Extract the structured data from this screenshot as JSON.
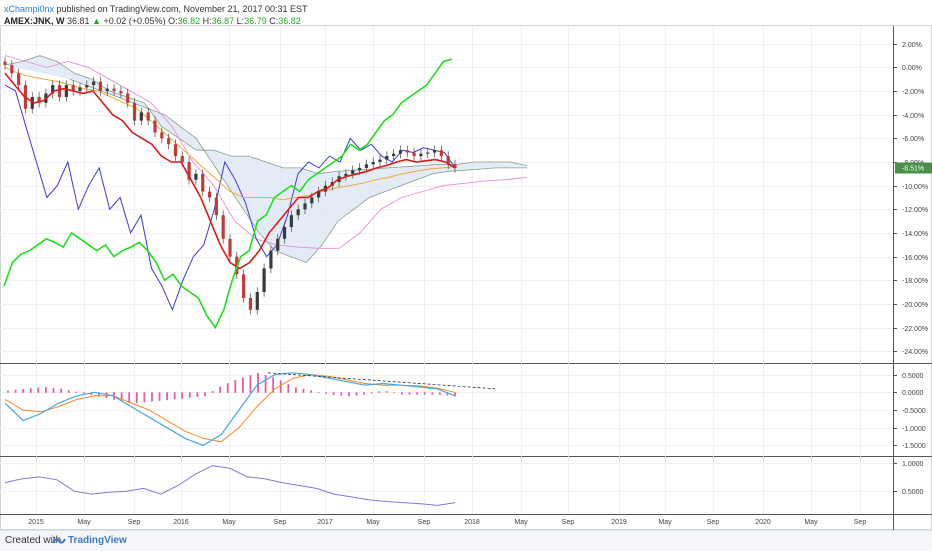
{
  "header": {
    "author": "xChampi0nx",
    "published": "published on TradingView.com, November 21, 2017 00:31 EST",
    "symbol": "AMEX:JNK, W",
    "last": "36.81",
    "change": "+0.02 (+0.05%)",
    "open_label": "O:",
    "open": "36.82",
    "high_label": "H:",
    "high": "36.87",
    "low_label": "L:",
    "low": "36.79",
    "close_label": "C:",
    "close": "36.82"
  },
  "footer": {
    "created": "Created with",
    "brand": "TradingView"
  },
  "colors": {
    "tenkan": "#e01919",
    "kijun": "#f4a63a",
    "chikou": "#22dd22",
    "blue": "#3c3ccf",
    "cloud": "#d7e4f2",
    "cloud_edge": "#8a9f88",
    "pink": "#e58fd6",
    "macd": "#46a9e0",
    "signal": "#f48a2a",
    "hist": "#e05ca8",
    "rsi": "#8577d6",
    "up": "#3a3a3a",
    "down": "#c23b3b",
    "price_tag": "#4a8f4a"
  },
  "chart_data": [
    {
      "type": "line",
      "panel": "main",
      "x_ticks": [
        "2015",
        "May",
        "Sep",
        "2016",
        "May",
        "Sep",
        "2017",
        "May",
        "Sep",
        "2018",
        "May",
        "Sep",
        "2019",
        "May",
        "Sep",
        "2020",
        "May",
        "Sep"
      ],
      "y_ticks": [
        "2.00%",
        "0.00%",
        "-2.00%",
        "-4.00%",
        "-6.00%",
        "-8.00%",
        "-10.00%",
        "-12.00%",
        "-14.00%",
        "-16.00%",
        "-18.00%",
        "-20.00%",
        "-22.00%",
        "-24.00%"
      ],
      "ylim": [
        -25,
        3.5
      ],
      "last_value_label": "-8.51%",
      "candles_close": [
        0.2,
        -0.5,
        -1.5,
        -3.5,
        -2.5,
        -3.0,
        -2.2,
        -1.5,
        -2.5,
        -1.5,
        -2.0,
        -1.7,
        -1.5,
        -1.2,
        -2.0,
        -1.8,
        -2.0,
        -2.2,
        -3.0,
        -4.5,
        -3.8,
        -4.5,
        -5.5,
        -6.0,
        -6.5,
        -7.5,
        -8.0,
        -9.5,
        -9.0,
        -10.5,
        -11.0,
        -12.5,
        -14.5,
        -16.0,
        -17.5,
        -19.5,
        -20.5,
        -19.0,
        -17.0,
        -15.5,
        -14.5,
        -13.5,
        -12.5,
        -12.0,
        -11.5,
        -11.0,
        -10.5,
        -10.0,
        -9.7,
        -9.2,
        -9.0,
        -8.7,
        -8.5,
        -8.2,
        -8.0,
        -7.8,
        -7.5,
        -7.3,
        -7.0,
        -7.2,
        -7.5,
        -7.3,
        -7.2,
        -7.0,
        -7.5,
        -8.2,
        -8.5
      ],
      "series": [
        {
          "name": "",
          "role": "chikou",
          "values": [
            -18.5,
            -16.5,
            -15.8,
            -15.5,
            -15.0,
            -14.5,
            -14.8,
            -15.2,
            -14.0,
            -14.5,
            -15.0,
            -15.5,
            -15.0,
            -16.0,
            -15.5,
            -15.2,
            -14.8,
            -15.5,
            -16.5,
            -18.0,
            -17.5,
            -18.5,
            -19.0,
            -19.5,
            -21.0,
            -22.0,
            -20.5,
            -18.0,
            -16.0,
            -15.5,
            -13.0,
            -12.5,
            -11.0,
            -10.5,
            -10.0,
            -10.5,
            -9.5,
            -9.0,
            -8.5,
            -8.0,
            -7.5,
            -6.5,
            -7.0,
            -6.5,
            -5.5,
            -4.5,
            -4.0,
            -3.0,
            -2.5,
            -2.0,
            -1.5,
            -0.5,
            0.5,
            0.7
          ]
        },
        {
          "name": "",
          "role": "tenkan",
          "values": [
            -0.5,
            -1.5,
            -2.5,
            -3.0,
            -2.8,
            -2.0,
            -1.8,
            -2.0,
            -2.2,
            -2.0,
            -3.0,
            -4.0,
            -4.5,
            -5.5,
            -6.0,
            -6.5,
            -7.5,
            -8.0,
            -8.0,
            -9.5,
            -11.0,
            -13.0,
            -15.0,
            -16.5,
            -17.0,
            -16.5,
            -15.5,
            -14.0,
            -13.0,
            -12.0,
            -11.0,
            -11.0,
            -10.5,
            -10.2,
            -9.5,
            -9.2,
            -9.0,
            -8.8,
            -8.5,
            -8.3,
            -8.0,
            -7.8,
            -8.0,
            -7.9,
            -7.8,
            -8.0,
            -8.5
          ]
        },
        {
          "name": "",
          "role": "kijun",
          "values": [
            0.0,
            -0.5,
            -0.8,
            -1.0,
            -1.2,
            -1.5,
            -1.8,
            -2.0,
            -2.5,
            -3.0,
            -3.5,
            -4.5,
            -5.5,
            -6.5,
            -7.5,
            -8.5,
            -9.5,
            -10.5,
            -11.0,
            -11.0,
            -11.0,
            -11.2,
            -11.0,
            -10.8,
            -10.5,
            -10.2,
            -10.0,
            -9.8,
            -9.5,
            -9.3,
            -9.0,
            -8.8,
            -8.6,
            -8.5,
            -8.4
          ]
        },
        {
          "name": "",
          "role": "blue",
          "values": [
            -1.5,
            -2.0,
            -5.0,
            -8.0,
            -11.0,
            -10.0,
            -8.0,
            -12.0,
            -10.0,
            -8.5,
            -12.0,
            -11.0,
            -14.0,
            -12.5,
            -17.0,
            -18.5,
            -20.5,
            -18.0,
            -16.0,
            -15.0,
            -12.0,
            -8.0,
            -9.5,
            -11.5,
            -14.5,
            -16.0,
            -15.0,
            -12.5,
            -9.0,
            -8.0,
            -8.5,
            -7.5,
            -8.0,
            -6.0,
            -7.0,
            -6.5,
            -7.5,
            -8.0,
            -7.0,
            -7.2,
            -6.8,
            -7.0,
            -7.2,
            -8.5
          ]
        },
        {
          "name": "",
          "role": "cloud_top",
          "values": [
            0.2,
            0.5,
            1.0,
            0.5,
            -0.5,
            -1.0,
            -2.0,
            -2.5,
            -3.0,
            -5.0,
            -6.0,
            -7.0,
            -7.0,
            -7.5,
            -7.5,
            -8.0,
            -8.5,
            -8.5,
            -9.0,
            -8.8,
            -8.7,
            -8.6,
            -8.5,
            -8.4,
            -8.3,
            -8.2,
            -8.2,
            -8.0,
            -8.0,
            -8.0,
            -8.3
          ]
        },
        {
          "name": "",
          "role": "cloud_bottom",
          "values": [
            -1.0,
            -1.5,
            -2.0,
            -2.5,
            -3.0,
            -3.5,
            -4.0,
            -5.0,
            -6.0,
            -8.0,
            -10.0,
            -12.0,
            -14.0,
            -15.5,
            -16.0,
            -16.5,
            -15.0,
            -13.0,
            -12.0,
            -11.0,
            -10.5,
            -10.0,
            -9.5,
            -9.0,
            -8.8,
            -8.7,
            -8.6,
            -8.5,
            -8.5,
            -8.5
          ]
        },
        {
          "name": "",
          "role": "pink",
          "values": [
            1.0,
            0.5,
            0.0,
            0.5,
            0.0,
            -1.0,
            -2.0,
            -3.0,
            -5.0,
            -8.0,
            -10.0,
            -13.0,
            -14.5,
            -15.0,
            -15.2,
            -15.3,
            -15.3,
            -14.0,
            -12.0,
            -11.0,
            -10.5,
            -10.0,
            -9.8,
            -9.6,
            -9.5,
            -9.3
          ]
        }
      ]
    },
    {
      "type": "line",
      "panel": "macd",
      "y_ticks": [
        "0.5000",
        "0.0000",
        "-0.5000",
        "-1.0000",
        "-1.5000"
      ],
      "ylim": [
        -1.8,
        0.8
      ],
      "series": [
        {
          "name": "",
          "role": "macd",
          "values": [
            -0.3,
            -0.8,
            -0.6,
            -0.3,
            -0.1,
            0.0,
            -0.1,
            -0.4,
            -0.7,
            -1.0,
            -1.3,
            -1.5,
            -1.2,
            -0.5,
            0.2,
            0.5,
            0.55,
            0.5,
            0.4,
            0.3,
            0.2,
            0.25,
            0.2,
            0.15,
            0.1,
            -0.1
          ]
        },
        {
          "name": "",
          "role": "signal",
          "values": [
            -0.2,
            -0.5,
            -0.55,
            -0.4,
            -0.2,
            -0.1,
            -0.1,
            -0.3,
            -0.5,
            -0.8,
            -1.1,
            -1.3,
            -1.4,
            -1.0,
            -0.4,
            0.1,
            0.4,
            0.5,
            0.45,
            0.35,
            0.25,
            0.2,
            0.2,
            0.18,
            0.12,
            0.0
          ]
        },
        {
          "name": "",
          "role": "histogram",
          "values": [
            0.05,
            0.1,
            0.15,
            0.1,
            0.0,
            -0.1,
            -0.2,
            -0.3,
            -0.25,
            -0.2,
            -0.15,
            -0.1,
            0.2,
            0.4,
            0.55,
            0.4,
            0.15,
            0.05,
            -0.05,
            -0.1,
            -0.05,
            0.05,
            -0.05,
            -0.05,
            -0.05,
            -0.1
          ]
        },
        {
          "name": "",
          "role": "trendline",
          "values": [
            0.55,
            0.1
          ]
        }
      ]
    },
    {
      "type": "line",
      "panel": "lower",
      "y_ticks": [
        "1.0000",
        "0.5000"
      ],
      "ylim": [
        0.1,
        1.1
      ],
      "series": [
        {
          "name": "",
          "role": "line",
          "values": [
            0.65,
            0.72,
            0.75,
            0.7,
            0.5,
            0.45,
            0.48,
            0.5,
            0.55,
            0.45,
            0.6,
            0.8,
            0.95,
            0.9,
            0.75,
            0.72,
            0.65,
            0.6,
            0.55,
            0.45,
            0.4,
            0.35,
            0.32,
            0.3,
            0.28,
            0.25,
            0.3
          ]
        }
      ]
    }
  ]
}
